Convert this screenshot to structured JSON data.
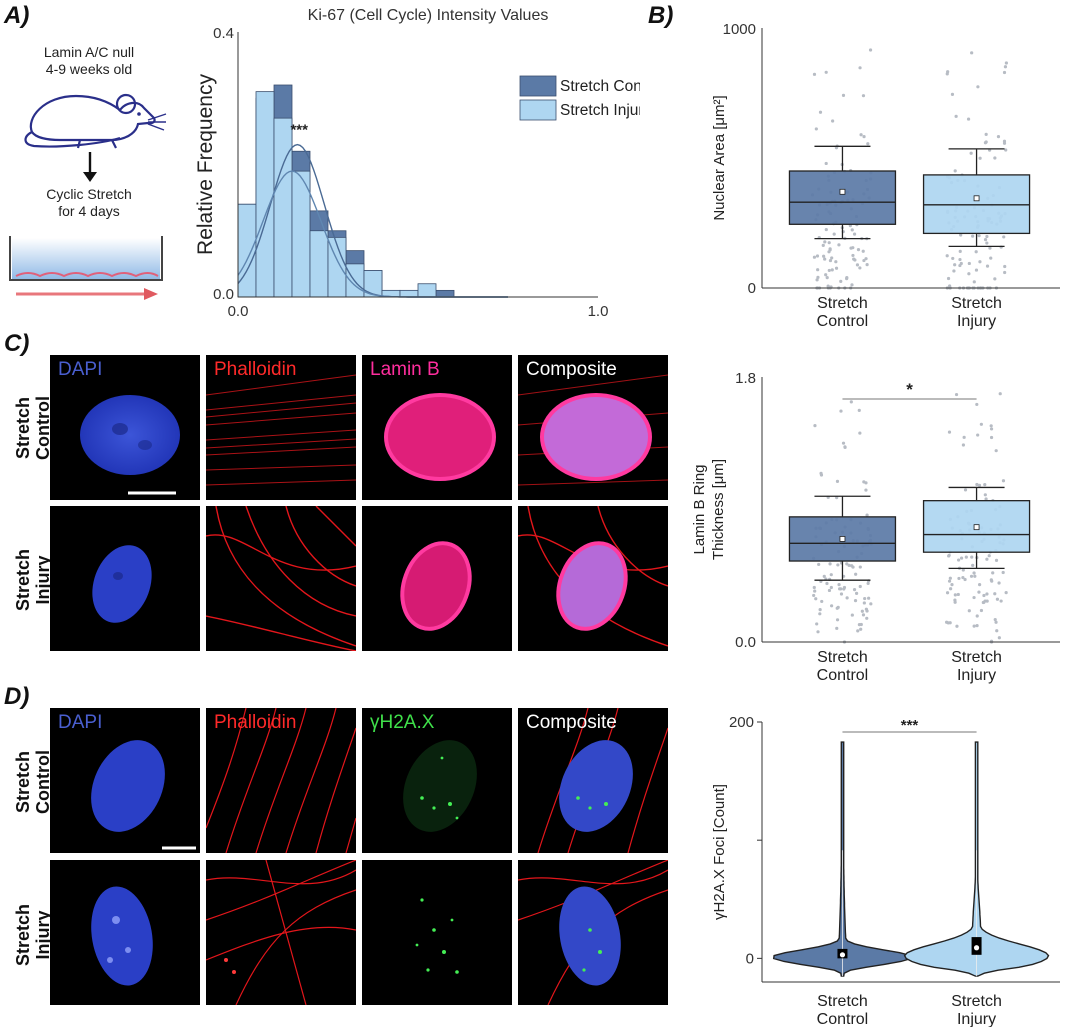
{
  "panels": {
    "a": "A)",
    "b": "B)",
    "c": "C)",
    "d": "D)"
  },
  "schematic": {
    "mouse_line1": "Lamin A/C null",
    "mouse_line2": "4-9 weeks old",
    "stretch_line1": "Cyclic Stretch",
    "stretch_line2": "for 4 days",
    "icons": [
      "mouse-icon",
      "down-arrow-icon",
      "culture-dish-icon",
      "stretch-arrow-icon"
    ]
  },
  "images": {
    "c_channels": [
      "DAPI",
      "Phalloidin",
      "Lamin B",
      "Composite"
    ],
    "d_channels": [
      "DAPI",
      "Phalloidin",
      "γH2A.X",
      "Composite"
    ],
    "row_control": [
      "Stretch",
      "Control"
    ],
    "row_injury": [
      "Stretch",
      "Injury"
    ],
    "colors": {
      "dapi": "#4a5fd0",
      "phalloidin": "#ff2a2a",
      "laminb": "#ff2e9e",
      "h2ax": "#3fe04a",
      "composite": "#ffffff"
    }
  },
  "chart_data": [
    {
      "id": "histogram",
      "type": "bar",
      "title": "Ki-67 (Cell Cycle) Intensity Values",
      "xlabel": "",
      "ylabel": "Relative Frequency",
      "xlim": [
        0.0,
        1.0
      ],
      "ylim": [
        0.0,
        0.4
      ],
      "xticks": [
        "0.0",
        "1.0"
      ],
      "yticks": [
        "0.0",
        "0.4"
      ],
      "bin_width": 0.05,
      "bin_start": 0.0,
      "series": [
        {
          "name": "Stretch Control",
          "color": "#5b7aa6",
          "values": [
            0.14,
            0.3,
            0.32,
            0.22,
            0.13,
            0.1,
            0.07,
            0.04,
            0.01,
            0.01,
            0.01,
            0.01
          ]
        },
        {
          "name": "Stretch Injury",
          "color": "#aed6f1",
          "values": [
            0.14,
            0.31,
            0.27,
            0.19,
            0.1,
            0.09,
            0.05,
            0.04,
            0.01,
            0.01,
            0.02,
            0.0
          ]
        }
      ],
      "curves": [
        {
          "name": "Stretch Control",
          "color": "#4a6a94",
          "mean": 0.165,
          "sd": 0.075,
          "peak": 0.23
        },
        {
          "name": "Stretch Injury",
          "color": "#5f86b0",
          "mean": 0.15,
          "sd": 0.08,
          "peak": 0.19
        }
      ],
      "annotation": "***",
      "legend": "top-right"
    },
    {
      "id": "nuclear-area",
      "type": "box",
      "ylabel": "Nuclear Area [μm²]",
      "ylim": [
        0,
        1000
      ],
      "yticks": [
        "0",
        "1000"
      ],
      "categories": [
        [
          "Stretch",
          "Control"
        ],
        [
          "Stretch",
          "Injury"
        ]
      ],
      "groups": [
        {
          "color": "#5b7aa6",
          "whisker_low": 190,
          "q1": 245,
          "median": 330,
          "q3": 450,
          "whisker_high": 545,
          "mean": 370
        },
        {
          "color": "#aed6f1",
          "whisker_low": 160,
          "q1": 210,
          "median": 320,
          "q3": 435,
          "whisker_high": 535,
          "mean": 345
        }
      ]
    },
    {
      "id": "lamin-thickness",
      "type": "box",
      "ylabel_line1": "Lamin B Ring",
      "ylabel_line2": "Thickness [μm]",
      "ylim": [
        0.0,
        1.8
      ],
      "yticks": [
        "0.0",
        "1.8"
      ],
      "categories": [
        [
          "Stretch",
          "Control"
        ],
        [
          "Stretch",
          "Injury"
        ]
      ],
      "groups": [
        {
          "color": "#5b7aa6",
          "whisker_low": 0.42,
          "q1": 0.55,
          "median": 0.67,
          "q3": 0.85,
          "whisker_high": 0.99,
          "mean": 0.7
        },
        {
          "color": "#aed6f1",
          "whisker_low": 0.5,
          "q1": 0.61,
          "median": 0.73,
          "q3": 0.96,
          "whisker_high": 1.05,
          "mean": 0.78
        }
      ],
      "annotation": "*"
    },
    {
      "id": "h2ax-foci",
      "type": "violin",
      "ylabel": "γH2A.X Foci [Count]",
      "ylim": [
        -20,
        200
      ],
      "yticks": [
        "0",
        "200"
      ],
      "categories": [
        [
          "Stretch",
          "Control"
        ],
        [
          "Stretch",
          "Injury"
        ]
      ],
      "groups": [
        {
          "color": "#5b7aa6",
          "max": 183,
          "min": -15,
          "q1": 0,
          "q3": 8,
          "median": 3
        },
        {
          "color": "#aed6f1",
          "max": 183,
          "min": -15,
          "q1": 3,
          "q3": 18,
          "median": 9
        }
      ],
      "annotation": "***"
    }
  ]
}
